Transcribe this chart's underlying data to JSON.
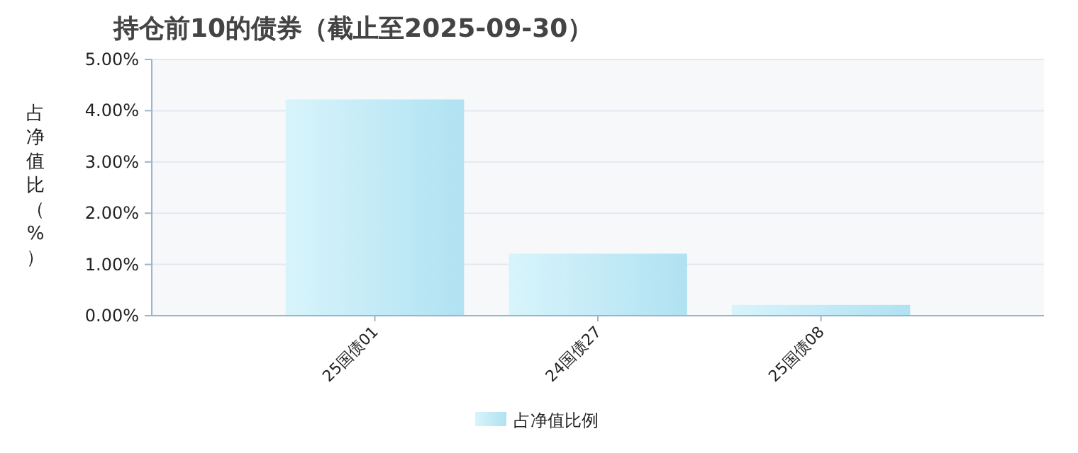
{
  "chart_data": {
    "type": "bar",
    "title": "持仓前10的债券（截止至2025-09-30）",
    "ylabel": "占净值比（%）",
    "categories": [
      "25国债01",
      "24国债27",
      "25国债08"
    ],
    "series": [
      {
        "name": "占净值比例",
        "color": "#b0e2f2",
        "values": [
          4.22,
          1.21,
          0.21
        ]
      }
    ],
    "ylim": [
      0,
      5
    ],
    "yticks": [
      {
        "value": 0,
        "label": "0.00%"
      },
      {
        "value": 1,
        "label": "1.00%"
      },
      {
        "value": 2,
        "label": "2.00%"
      },
      {
        "value": 3,
        "label": "3.00%"
      },
      {
        "value": 4,
        "label": "4.00%"
      },
      {
        "value": 5,
        "label": "5.00%"
      }
    ],
    "grid": "y",
    "legend": "bottom"
  }
}
